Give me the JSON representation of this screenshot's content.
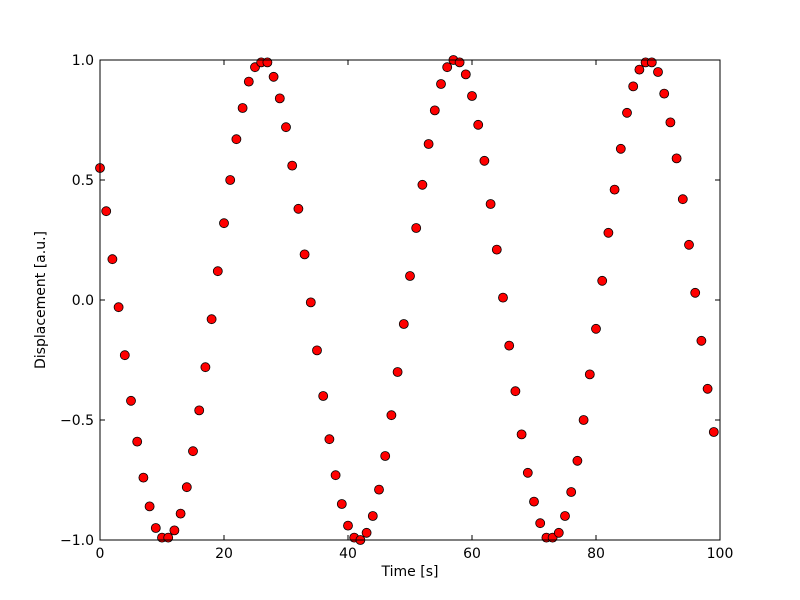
{
  "chart_data": {
    "type": "scatter",
    "xlabel": "Time [s]",
    "ylabel": "Displacement [a.u.]",
    "xlim": [
      0,
      100
    ],
    "ylim": [
      -1.0,
      1.0
    ],
    "xticks": [
      0,
      20,
      40,
      60,
      80,
      100
    ],
    "xtick_labels": [
      "0",
      "20",
      "40",
      "60",
      "80",
      "100"
    ],
    "yticks": [
      -1.0,
      -0.5,
      0.0,
      0.5,
      1.0
    ],
    "ytick_labels": [
      "−1.0",
      "−0.5",
      "0.0",
      "0.5",
      "1.0"
    ],
    "grid": false,
    "marker": "circle",
    "marker_color": "#ff0000",
    "marker_edge_color": "#000000",
    "series": [
      {
        "x": [
          0,
          1,
          2,
          3,
          4,
          5,
          6,
          7,
          8,
          9,
          10,
          11,
          12,
          13,
          14,
          15,
          16,
          17,
          18,
          19,
          20,
          21,
          22,
          23,
          24,
          25,
          26,
          27,
          28,
          29,
          30,
          31,
          32,
          33,
          34,
          35,
          36,
          37,
          38,
          39,
          40,
          41,
          42,
          43,
          44,
          45,
          46,
          47,
          48,
          49,
          50,
          51,
          52,
          53,
          54,
          55,
          56,
          57,
          58,
          59,
          60,
          61,
          62,
          63,
          64,
          65,
          66,
          67,
          68,
          69,
          70,
          71,
          72,
          73,
          74,
          75,
          76,
          77,
          78,
          79,
          80,
          81,
          82,
          83,
          84,
          85,
          86,
          87,
          88,
          89,
          90,
          91,
          92,
          93,
          94,
          95,
          96,
          97,
          98,
          99
        ],
        "y": [
          0.55,
          0.37,
          0.17,
          -0.03,
          -0.23,
          -0.42,
          -0.59,
          -0.74,
          -0.86,
          -0.95,
          -0.99,
          -0.99,
          -0.96,
          -0.89,
          -0.78,
          -0.63,
          -0.46,
          -0.28,
          -0.08,
          0.12,
          0.32,
          0.5,
          0.67,
          0.8,
          0.91,
          0.97,
          0.99,
          0.99,
          0.93,
          0.84,
          0.72,
          0.56,
          0.38,
          0.19,
          -0.01,
          -0.21,
          -0.4,
          -0.58,
          -0.73,
          -0.85,
          -0.94,
          -0.99,
          -1.0,
          -0.97,
          -0.9,
          -0.79,
          -0.65,
          -0.48,
          -0.3,
          -0.1,
          0.1,
          0.3,
          0.48,
          0.65,
          0.79,
          0.9,
          0.97,
          1.0,
          0.99,
          0.94,
          0.85,
          0.73,
          0.58,
          0.4,
          0.21,
          0.01,
          -0.19,
          -0.38,
          -0.56,
          -0.72,
          -0.84,
          -0.93,
          -0.99,
          -0.99,
          -0.97,
          -0.9,
          -0.8,
          -0.67,
          -0.5,
          -0.31,
          -0.12,
          0.08,
          0.28,
          0.46,
          0.63,
          0.78,
          0.89,
          0.96,
          0.99,
          0.99,
          0.95,
          0.86,
          0.74,
          0.59,
          0.42,
          0.23,
          0.03,
          -0.17,
          -0.37,
          -0.55
        ]
      }
    ]
  }
}
